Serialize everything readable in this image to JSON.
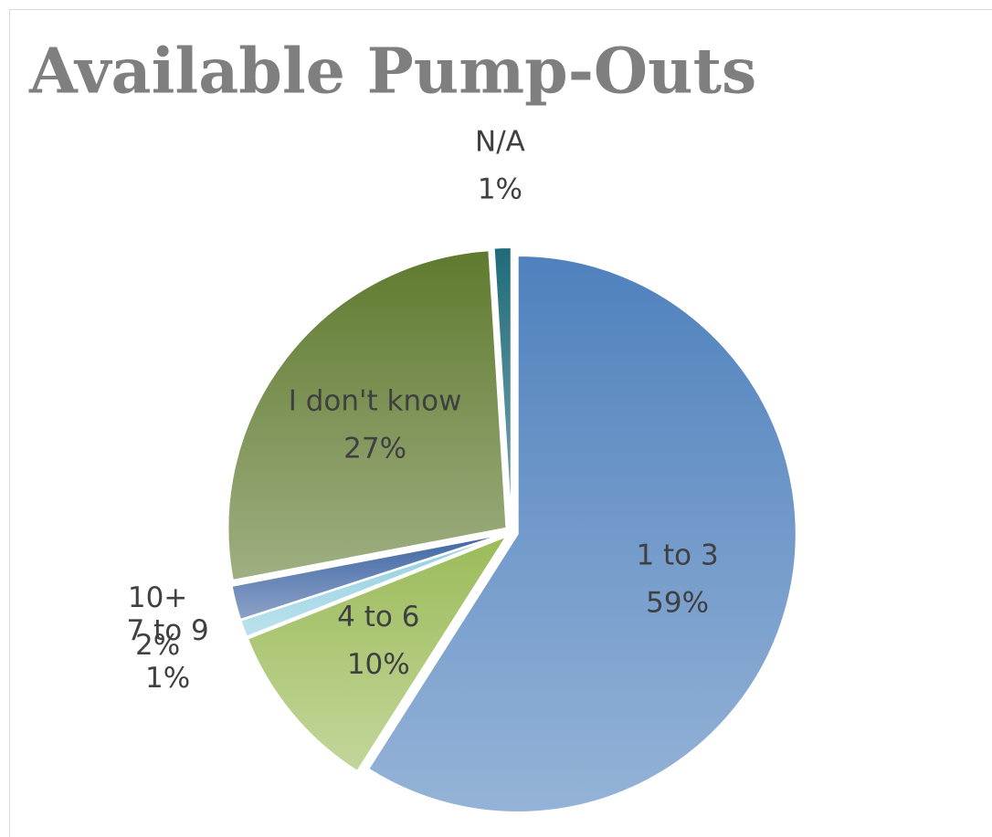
{
  "chart_data": {
    "type": "pie",
    "title": "Available Pump-Outs",
    "categories": [
      "1 to 3",
      "4 to 6",
      "7 to 9",
      "10+",
      "I don't know",
      "N/A"
    ],
    "values": [
      59,
      10,
      1,
      2,
      27,
      1
    ],
    "value_labels": [
      "59%",
      "10%",
      "1%",
      "2%",
      "27%",
      "1%"
    ],
    "colors": [
      "#4f81bd",
      "#9bbb59",
      "#8fcfe0",
      "#3f65a3",
      "#5f7a2e",
      "#1f6b7a"
    ]
  }
}
